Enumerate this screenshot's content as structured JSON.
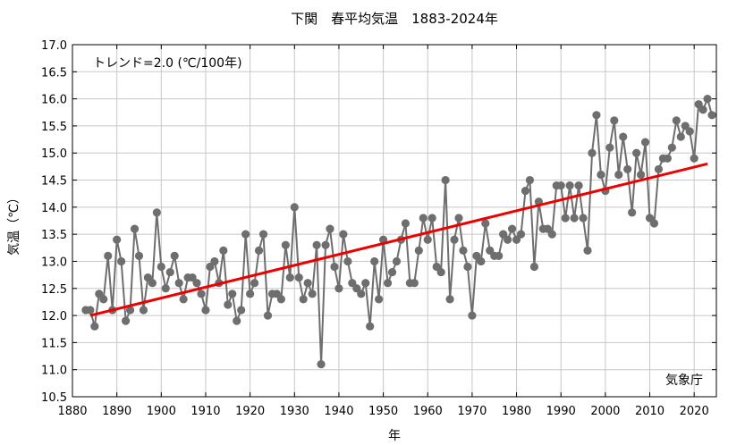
{
  "chart_data": {
    "type": "line",
    "title": "下関　春平均気温　1883-2024年",
    "xlabel": "年",
    "ylabel": "気温（℃）",
    "annotation": "トレンド=2.0 (℃/100年)",
    "credit": "気象庁",
    "xlim": [
      1880,
      2025
    ],
    "ylim": [
      10.5,
      17.0
    ],
    "xticks": [
      1880,
      1890,
      1900,
      1910,
      1920,
      1930,
      1940,
      1950,
      1960,
      1970,
      1980,
      1990,
      2000,
      2010,
      2020
    ],
    "yticks": [
      10.5,
      11.0,
      11.5,
      12.0,
      12.5,
      13.0,
      13.5,
      14.0,
      14.5,
      15.0,
      15.5,
      16.0,
      16.5,
      17.0
    ],
    "ytick_labels": [
      "10.5",
      "11.0",
      "11.5",
      "12.0",
      "12.5",
      "13.0",
      "13.5",
      "14.0",
      "14.5",
      "15.0",
      "15.5",
      "16.0",
      "16.5",
      "17.0"
    ],
    "series": [
      {
        "color": "#6e6e6e",
        "x": [
          1883,
          1884,
          1885,
          1886,
          1887,
          1888,
          1889,
          1890,
          1891,
          1892,
          1893,
          1894,
          1895,
          1896,
          1897,
          1898,
          1899,
          1900,
          1901,
          1902,
          1903,
          1904,
          1905,
          1906,
          1907,
          1908,
          1909,
          1910,
          1911,
          1912,
          1913,
          1914,
          1915,
          1916,
          1917,
          1918,
          1919,
          1920,
          1921,
          1922,
          1923,
          1924,
          1925,
          1926,
          1927,
          1928,
          1929,
          1930,
          1931,
          1932,
          1933,
          1934,
          1935,
          1936,
          1937,
          1938,
          1939,
          1940,
          1941,
          1942,
          1943,
          1944,
          1945,
          1946,
          1947,
          1948,
          1949,
          1950,
          1951,
          1952,
          1953,
          1954,
          1955,
          1956,
          1957,
          1958,
          1959,
          1960,
          1961,
          1962,
          1963,
          1964,
          1965,
          1966,
          1967,
          1968,
          1969,
          1970,
          1971,
          1972,
          1973,
          1974,
          1975,
          1976,
          1977,
          1978,
          1979,
          1980,
          1981,
          1982,
          1983,
          1984,
          1985,
          1986,
          1987,
          1988,
          1989,
          1990,
          1991,
          1992,
          1993,
          1994,
          1995,
          1996,
          1997,
          1998,
          1999,
          2000,
          2001,
          2002,
          2003,
          2004,
          2005,
          2006,
          2007,
          2008,
          2009,
          2010,
          2011,
          2012,
          2013,
          2014,
          2015,
          2016,
          2017,
          2018,
          2019,
          2020,
          2021,
          2022,
          2023,
          2024
        ],
        "y": [
          12.1,
          12.1,
          11.8,
          12.4,
          12.3,
          13.1,
          12.1,
          13.4,
          13.0,
          11.9,
          12.1,
          13.6,
          13.1,
          12.1,
          12.7,
          12.6,
          13.9,
          12.9,
          12.5,
          12.8,
          13.1,
          12.6,
          12.3,
          12.7,
          12.7,
          12.6,
          12.4,
          12.1,
          12.9,
          13.0,
          12.6,
          13.2,
          12.2,
          12.4,
          11.9,
          12.1,
          13.5,
          12.4,
          12.6,
          13.2,
          13.5,
          12.0,
          12.4,
          12.4,
          12.3,
          13.3,
          12.7,
          14.0,
          12.7,
          12.3,
          12.6,
          12.4,
          13.3,
          11.1,
          13.3,
          13.6,
          12.9,
          12.5,
          13.5,
          13.0,
          12.6,
          12.5,
          12.4,
          12.6,
          11.8,
          13.0,
          12.3,
          13.4,
          12.6,
          12.8,
          13.0,
          13.4,
          13.7,
          12.6,
          12.6,
          13.2,
          13.8,
          13.4,
          13.8,
          12.9,
          12.8,
          14.5,
          12.3,
          13.4,
          13.8,
          13.2,
          12.9,
          12.0,
          13.1,
          13.0,
          13.7,
          13.2,
          13.1,
          13.1,
          13.5,
          13.4,
          13.6,
          13.4,
          13.5,
          14.3,
          14.5,
          12.9,
          14.1,
          13.6,
          13.6,
          13.5,
          14.4,
          14.4,
          13.8,
          14.4,
          13.8,
          14.4,
          13.8,
          13.2,
          15.0,
          15.7,
          14.6,
          14.3,
          15.1,
          15.6,
          14.6,
          15.3,
          14.7,
          13.9,
          15.0,
          14.6,
          15.2,
          13.8,
          13.7,
          14.7,
          14.9,
          14.9,
          15.1,
          15.6,
          15.3,
          15.5,
          15.4,
          14.9,
          15.9,
          15.8,
          16.0,
          15.7
        ]
      }
    ],
    "trend": {
      "color": "#ee0000",
      "x": [
        1884,
        2023
      ],
      "y": [
        12.0,
        14.8
      ]
    }
  }
}
